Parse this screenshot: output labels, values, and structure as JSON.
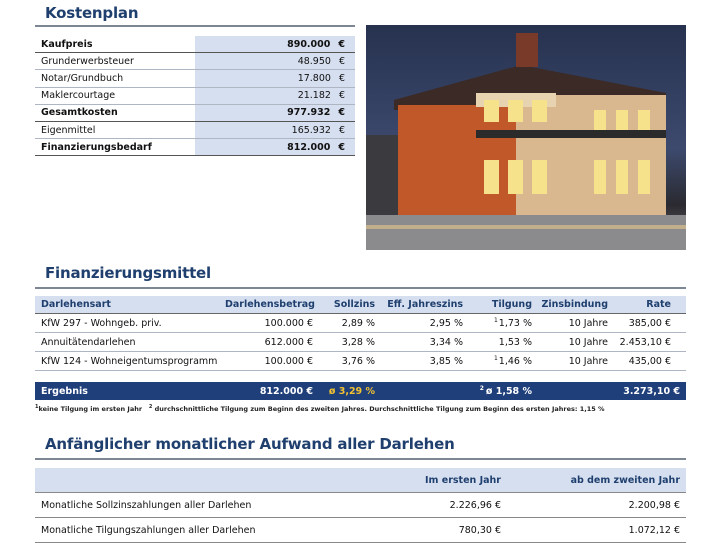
{
  "kostenplan": {
    "title": "Kostenplan",
    "currency": "€",
    "rows": [
      {
        "label": "Kaufpreis",
        "value": "890.000",
        "bold": true
      },
      {
        "label": "Grunderwerbsteuer",
        "value": "48.950",
        "bold": false
      },
      {
        "label": "Notar/Grundbuch",
        "value": "17.800",
        "bold": false
      },
      {
        "label": "Maklercourtage",
        "value": "21.182",
        "bold": false
      },
      {
        "label": "Gesamtkosten",
        "value": "977.932",
        "bold": true
      },
      {
        "label": "Eigenmittel",
        "value": "165.932",
        "bold": false
      },
      {
        "label": "Finanzierungsbedarf",
        "value": "812.000",
        "bold": true
      }
    ]
  },
  "finanzierung": {
    "title": "Finanzierungsmittel",
    "headers": [
      "Darlehensart",
      "Darlehensbetrag",
      "Sollzins",
      "Eff. Jahreszins",
      "Tilgung",
      "Zinsbindung",
      "Rate"
    ],
    "rows": [
      {
        "art": "KfW 297 - Wohngeb. priv.",
        "betrag": "100.000 €",
        "sollzins": "2,89 %",
        "eff": "2,95 %",
        "tilgung_note": "1",
        "tilgung": "1,73 %",
        "bindung": "10 Jahre",
        "rate": "385,00 €"
      },
      {
        "art": "Annuitätendarlehen",
        "betrag": "612.000 €",
        "sollzins": "3,28 %",
        "eff": "3,34 %",
        "tilgung_note": "",
        "tilgung": "1,53 %",
        "bindung": "10 Jahre",
        "rate": "2.453,10 €"
      },
      {
        "art": "KfW 124 - Wohneigentumsprogramm",
        "betrag": "100.000 €",
        "sollzins": "3,76 %",
        "eff": "3,85 %",
        "tilgung_note": "1",
        "tilgung": "1,46 %",
        "bindung": "10 Jahre",
        "rate": "435,00 €"
      }
    ],
    "ergebnis": {
      "label": "Ergebnis",
      "betrag": "812.000 €",
      "sollzins": "ø 3,29 %",
      "tilgung_note": "2",
      "tilgung": "ø 1,58 %",
      "rate": "3.273,10 €"
    },
    "footnotes": [
      {
        "n": "1",
        "text": "keine Tilgung im ersten Jahr"
      },
      {
        "n": "2",
        "text": "durchschnittliche Tilgung zum Beginn des zweiten Jahres. Durchschnittliche Tilgung zum Beginn des ersten Jahres: 1,15 %"
      }
    ]
  },
  "aufwand": {
    "title": "Anfänglicher monatlicher Aufwand aller Darlehen",
    "headers": [
      "",
      "Im ersten Jahr",
      "ab dem zweiten Jahr"
    ],
    "rows": [
      {
        "label": "Monatliche Sollzinszahlungen aller Darlehen",
        "y1": "2.226,96 €",
        "y2": "2.200,98 €"
      },
      {
        "label": "Monatliche Tilgungszahlungen aller Darlehen",
        "y1": "780,30 €",
        "y2": "1.072,12 €"
      }
    ]
  },
  "colors": {
    "heading": "#1f3f6e",
    "ergebnis_bg": "#1f3f7a",
    "highlight": "#f2c230",
    "header_bg": "#d6dff0"
  }
}
